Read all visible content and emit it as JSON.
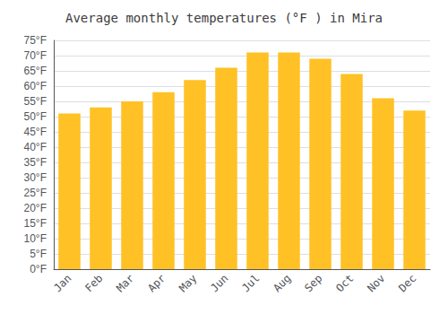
{
  "chart_data": {
    "type": "bar",
    "title": "Average monthly temperatures (°F ) in Mira",
    "categories": [
      "Jan",
      "Feb",
      "Mar",
      "Apr",
      "May",
      "Jun",
      "Jul",
      "Aug",
      "Sep",
      "Oct",
      "Nov",
      "Dec"
    ],
    "values": [
      51,
      53,
      55,
      58,
      62,
      66,
      71,
      71,
      69,
      64,
      56,
      52
    ],
    "color": "#FFC125",
    "ylim": [
      0,
      75
    ],
    "yticks": [
      {
        "value": 0,
        "label": "0°F"
      },
      {
        "value": 5,
        "label": "5°F"
      },
      {
        "value": 10,
        "label": "10°F"
      },
      {
        "value": 15,
        "label": "15°F"
      },
      {
        "value": 20,
        "label": "20°F"
      },
      {
        "value": 25,
        "label": "25°F"
      },
      {
        "value": 30,
        "label": "30°F"
      },
      {
        "value": 35,
        "label": "35°F"
      },
      {
        "value": 40,
        "label": "40°F"
      },
      {
        "value": 45,
        "label": "45°F"
      },
      {
        "value": 50,
        "label": "50°F"
      },
      {
        "value": 55,
        "label": "55°F"
      },
      {
        "value": 60,
        "label": "60°F"
      },
      {
        "value": 65,
        "label": "65°F"
      },
      {
        "value": 70,
        "label": "70°F"
      },
      {
        "value": 75,
        "label": "75°F"
      }
    ],
    "grid": true
  }
}
